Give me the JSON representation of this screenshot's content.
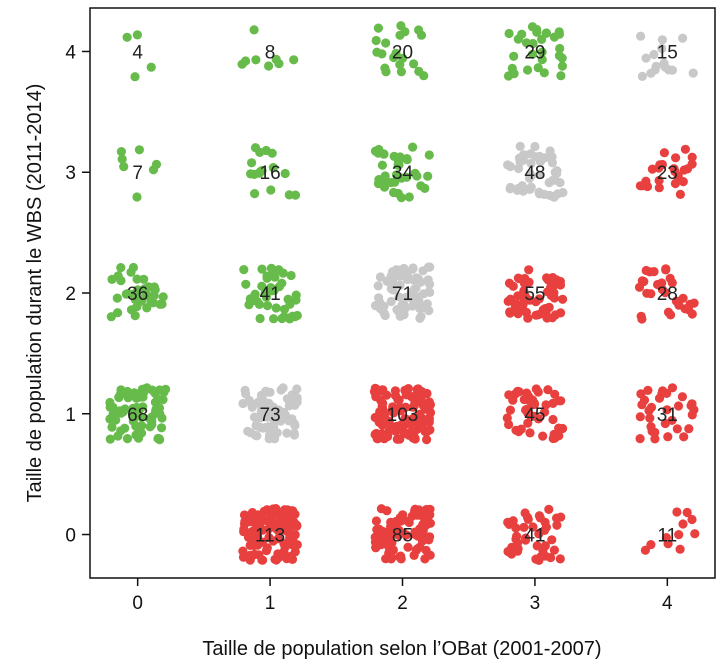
{
  "chart_data": {
    "type": "scatter",
    "xlabel": "Taille de population selon l’OBat (2001-2007)",
    "ylabel": "Taille de population durant le WBS (2011-2014)",
    "x_ticks": [
      "0",
      "1",
      "2",
      "3",
      "4"
    ],
    "y_ticks": [
      "0",
      "1",
      "2",
      "3",
      "4"
    ],
    "xlim": [
      -0.36,
      4.36
    ],
    "ylim": [
      -0.36,
      4.36
    ],
    "grid": false,
    "legend": "none",
    "colors": {
      "increase": "#66bb4a",
      "stable": "#c8c8c8",
      "decrease": "#e8403e"
    },
    "cells": [
      {
        "x": 0,
        "y": 4,
        "count": "4",
        "category": "increase"
      },
      {
        "x": 1,
        "y": 4,
        "count": "8",
        "category": "increase"
      },
      {
        "x": 2,
        "y": 4,
        "count": "20",
        "category": "increase"
      },
      {
        "x": 3,
        "y": 4,
        "count": "29",
        "category": "increase"
      },
      {
        "x": 4,
        "y": 4,
        "count": "15",
        "category": "stable"
      },
      {
        "x": 0,
        "y": 3,
        "count": "7",
        "category": "increase"
      },
      {
        "x": 1,
        "y": 3,
        "count": "16",
        "category": "increase"
      },
      {
        "x": 2,
        "y": 3,
        "count": "34",
        "category": "increase"
      },
      {
        "x": 3,
        "y": 3,
        "count": "48",
        "category": "stable"
      },
      {
        "x": 4,
        "y": 3,
        "count": "23",
        "category": "decrease"
      },
      {
        "x": 0,
        "y": 2,
        "count": "36",
        "category": "increase"
      },
      {
        "x": 1,
        "y": 2,
        "count": "41",
        "category": "increase"
      },
      {
        "x": 2,
        "y": 2,
        "count": "71",
        "category": "stable"
      },
      {
        "x": 3,
        "y": 2,
        "count": "55",
        "category": "decrease"
      },
      {
        "x": 4,
        "y": 2,
        "count": "28",
        "category": "decrease"
      },
      {
        "x": 0,
        "y": 1,
        "count": "68",
        "category": "increase"
      },
      {
        "x": 1,
        "y": 1,
        "count": "73",
        "category": "stable"
      },
      {
        "x": 2,
        "y": 1,
        "count": "103",
        "category": "decrease"
      },
      {
        "x": 3,
        "y": 1,
        "count": "45",
        "category": "decrease"
      },
      {
        "x": 4,
        "y": 1,
        "count": "31",
        "category": "decrease"
      },
      {
        "x": 1,
        "y": 0,
        "count": "113",
        "category": "decrease"
      },
      {
        "x": 2,
        "y": 0,
        "count": "85",
        "category": "decrease"
      },
      {
        "x": 3,
        "y": 0,
        "count": "41",
        "category": "decrease"
      },
      {
        "x": 4,
        "y": 0,
        "count": "11",
        "category": "decrease"
      }
    ]
  }
}
